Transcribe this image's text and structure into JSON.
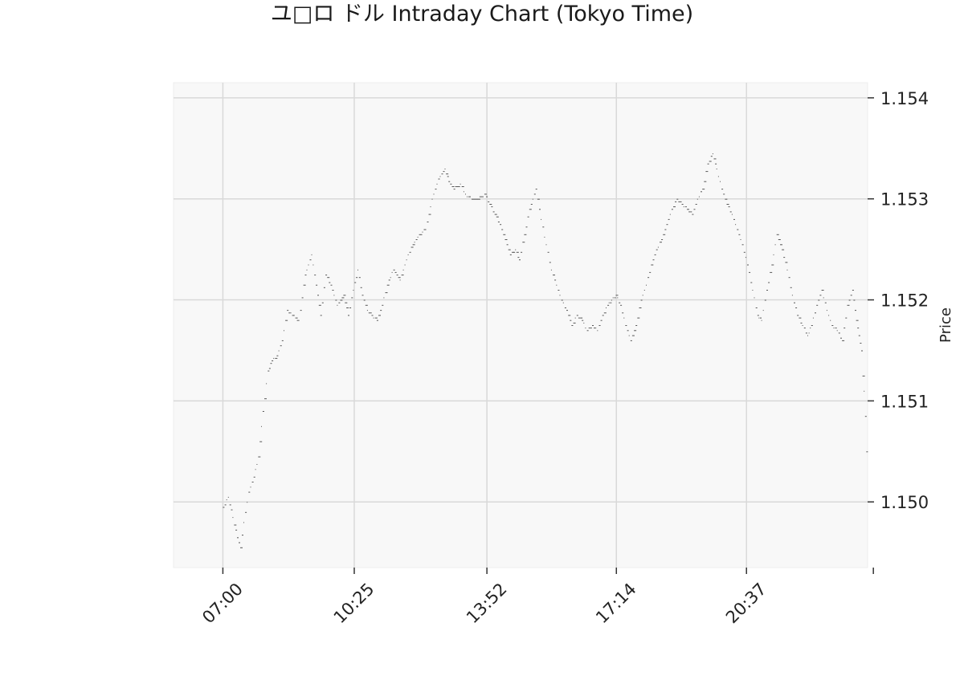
{
  "chart_data": {
    "type": "scatter",
    "title": "ユ□ロ ドル Intraday Chart (Tokyo Time)",
    "xlabel": "",
    "ylabel": "Price",
    "y_axis_side": "right",
    "grid": true,
    "legend": "none",
    "colors": {
      "points": "#555555",
      "plot_background": "#f8f8f8",
      "grid": "#d9d9d9",
      "axis": "#333333"
    },
    "x_unit": "minutes since 07:00 (Tokyo time)",
    "xlim": [
      -77,
      1006
    ],
    "ylim": [
      1.14935,
      1.15415
    ],
    "x_ticks": [
      {
        "value": 0,
        "label": "07:00"
      },
      {
        "value": 205,
        "label": "10:25"
      },
      {
        "value": 412,
        "label": "13:52"
      },
      {
        "value": 614,
        "label": "17:14"
      },
      {
        "value": 817,
        "label": "20:37"
      },
      {
        "value": 1015,
        "label": ""
      }
    ],
    "y_ticks": [
      {
        "value": 1.15,
        "label": "1.150"
      },
      {
        "value": 1.151,
        "label": "1.151"
      },
      {
        "value": 1.152,
        "label": "1.152"
      },
      {
        "value": 1.153,
        "label": "1.153"
      },
      {
        "value": 1.154,
        "label": "1.154"
      }
    ],
    "anchors": [
      [
        0,
        1.14995
      ],
      [
        8,
        1.15005
      ],
      [
        15,
        1.14985
      ],
      [
        22,
        1.14965
      ],
      [
        27,
        1.14955
      ],
      [
        32,
        1.1498
      ],
      [
        40,
        1.1501
      ],
      [
        48,
        1.15025
      ],
      [
        55,
        1.15045
      ],
      [
        62,
        1.1509
      ],
      [
        70,
        1.1513
      ],
      [
        76,
        1.1514
      ],
      [
        84,
        1.15145
      ],
      [
        92,
        1.1516
      ],
      [
        100,
        1.1519
      ],
      [
        108,
        1.15185
      ],
      [
        118,
        1.1518
      ],
      [
        128,
        1.15225
      ],
      [
        138,
        1.15245
      ],
      [
        145,
        1.15215
      ],
      [
        152,
        1.15185
      ],
      [
        160,
        1.15225
      ],
      [
        168,
        1.15215
      ],
      [
        178,
        1.15195
      ],
      [
        188,
        1.15205
      ],
      [
        195,
        1.15185
      ],
      [
        203,
        1.1521
      ],
      [
        210,
        1.1523
      ],
      [
        217,
        1.15205
      ],
      [
        225,
        1.1519
      ],
      [
        232,
        1.15185
      ],
      [
        240,
        1.1518
      ],
      [
        248,
        1.15195
      ],
      [
        256,
        1.15215
      ],
      [
        266,
        1.1523
      ],
      [
        276,
        1.1522
      ],
      [
        286,
        1.1524
      ],
      [
        296,
        1.15255
      ],
      [
        306,
        1.15265
      ],
      [
        316,
        1.1527
      ],
      [
        326,
        1.153
      ],
      [
        336,
        1.1532
      ],
      [
        346,
        1.1533
      ],
      [
        352,
        1.15318
      ],
      [
        360,
        1.1531
      ],
      [
        370,
        1.15315
      ],
      [
        378,
        1.15305
      ],
      [
        388,
        1.153
      ],
      [
        398,
        1.153
      ],
      [
        408,
        1.15305
      ],
      [
        416,
        1.15295
      ],
      [
        424,
        1.15285
      ],
      [
        432,
        1.15275
      ],
      [
        440,
        1.1526
      ],
      [
        448,
        1.15245
      ],
      [
        456,
        1.1525
      ],
      [
        462,
        1.1524
      ],
      [
        470,
        1.15265
      ],
      [
        478,
        1.1529
      ],
      [
        488,
        1.1531
      ],
      [
        496,
        1.1528
      ],
      [
        504,
        1.15255
      ],
      [
        512,
        1.1523
      ],
      [
        520,
        1.15215
      ],
      [
        528,
        1.152
      ],
      [
        536,
        1.1519
      ],
      [
        544,
        1.15175
      ],
      [
        552,
        1.15185
      ],
      [
        560,
        1.1518
      ],
      [
        568,
        1.1517
      ],
      [
        576,
        1.15175
      ],
      [
        584,
        1.1517
      ],
      [
        592,
        1.15185
      ],
      [
        600,
        1.15195
      ],
      [
        606,
        1.152
      ],
      [
        613,
        1.15205
      ],
      [
        620,
        1.15195
      ],
      [
        628,
        1.15175
      ],
      [
        636,
        1.1516
      ],
      [
        644,
        1.15175
      ],
      [
        652,
        1.152
      ],
      [
        660,
        1.15215
      ],
      [
        668,
        1.15235
      ],
      [
        676,
        1.1525
      ],
      [
        684,
        1.1526
      ],
      [
        692,
        1.15275
      ],
      [
        700,
        1.1529
      ],
      [
        708,
        1.153
      ],
      [
        716,
        1.15295
      ],
      [
        724,
        1.1529
      ],
      [
        732,
        1.15285
      ],
      [
        740,
        1.153
      ],
      [
        748,
        1.1531
      ],
      [
        756,
        1.15335
      ],
      [
        764,
        1.15345
      ],
      [
        770,
        1.1533
      ],
      [
        778,
        1.1531
      ],
      [
        786,
        1.15295
      ],
      [
        794,
        1.15285
      ],
      [
        802,
        1.1527
      ],
      [
        810,
        1.15255
      ],
      [
        818,
        1.15235
      ],
      [
        826,
        1.1521
      ],
      [
        834,
        1.15185
      ],
      [
        840,
        1.1518
      ],
      [
        848,
        1.1521
      ],
      [
        856,
        1.15235
      ],
      [
        864,
        1.15265
      ],
      [
        872,
        1.1525
      ],
      [
        880,
        1.1523
      ],
      [
        888,
        1.15205
      ],
      [
        896,
        1.15185
      ],
      [
        904,
        1.15175
      ],
      [
        912,
        1.15165
      ],
      [
        918,
        1.15175
      ],
      [
        926,
        1.15195
      ],
      [
        934,
        1.1521
      ],
      [
        942,
        1.1519
      ],
      [
        950,
        1.15175
      ],
      [
        958,
        1.1517
      ],
      [
        966,
        1.1516
      ],
      [
        974,
        1.15195
      ],
      [
        982,
        1.1521
      ],
      [
        988,
        1.1518
      ],
      [
        992,
        1.15165
      ],
      [
        996,
        1.1515
      ],
      [
        998,
        1.15125
      ],
      [
        1000,
        1.1511
      ],
      [
        1002,
        1.15085
      ],
      [
        1004,
        1.1505
      ]
    ]
  }
}
